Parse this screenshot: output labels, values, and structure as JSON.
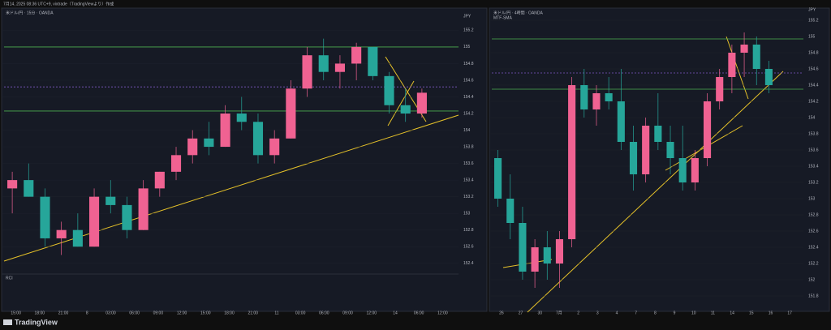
{
  "topbar": {
    "text": "7月14, 2025 08:36 UTC+9, vixtrade（TradingViewより）作成"
  },
  "footer": {
    "brand": "TradingView"
  },
  "panels": [
    {
      "legend": "米ドル/円 · 15分 · OANDA",
      "currency": "JPY",
      "indicator": "RCI",
      "ylim": [
        152.3,
        155.35
      ],
      "yticks": [
        152.4,
        152.6,
        152.8,
        153.0,
        153.2,
        153.4,
        153.6,
        153.8,
        154.0,
        154.2,
        154.4,
        154.6,
        154.8,
        155.0,
        155.2
      ],
      "xlabels": [
        "15:00",
        "18:00",
        "21:00",
        "8",
        "03:00",
        "06:00",
        "09:00",
        "12:00",
        "15:00",
        "18:00",
        "21:00",
        "11",
        "03:00",
        "06:00",
        "09:00",
        "12:00",
        "14",
        "06:00",
        "12:00"
      ],
      "levels": [
        {
          "value": 155.0,
          "color": "#4caf50"
        },
        {
          "value": 154.23,
          "color": "#4caf50"
        },
        {
          "value": 154.52,
          "color": "#7e57c2"
        }
      ],
      "candles": [
        [
          153.3,
          153.5,
          153.0,
          153.4
        ],
        [
          153.4,
          153.6,
          153.2,
          153.2
        ],
        [
          153.2,
          153.3,
          152.6,
          152.7
        ],
        [
          152.7,
          152.9,
          152.5,
          152.8
        ],
        [
          152.8,
          153.0,
          152.6,
          152.6
        ],
        [
          152.6,
          153.3,
          152.6,
          153.2
        ],
        [
          153.2,
          153.4,
          153.0,
          153.1
        ],
        [
          153.1,
          153.2,
          152.7,
          152.8
        ],
        [
          152.8,
          153.4,
          152.8,
          153.3
        ],
        [
          153.3,
          153.5,
          153.2,
          153.5
        ],
        [
          153.5,
          153.8,
          153.4,
          153.7
        ],
        [
          153.7,
          154.0,
          153.6,
          153.9
        ],
        [
          153.9,
          154.1,
          153.7,
          153.8
        ],
        [
          153.8,
          154.3,
          153.8,
          154.2
        ],
        [
          154.2,
          154.4,
          154.0,
          154.1
        ],
        [
          154.1,
          154.2,
          153.6,
          153.7
        ],
        [
          153.7,
          154.0,
          153.6,
          153.9
        ],
        [
          153.9,
          154.6,
          153.9,
          154.5
        ],
        [
          154.5,
          155.0,
          154.4,
          154.9
        ],
        [
          154.9,
          155.1,
          154.6,
          154.7
        ],
        [
          154.7,
          154.9,
          154.5,
          154.8
        ],
        [
          154.8,
          155.05,
          154.6,
          155.0
        ],
        [
          155.0,
          155.0,
          154.6,
          154.65
        ],
        [
          154.65,
          154.7,
          154.2,
          154.3
        ],
        [
          154.3,
          154.5,
          154.1,
          154.2
        ],
        [
          154.2,
          154.5,
          154.15,
          154.45
        ]
      ]
    },
    {
      "legend": "米ドル/円 · 4時間 · OANDA",
      "currency": "JPY",
      "indicator": "MTF-SMA",
      "ylim": [
        151.6,
        155.3
      ],
      "yticks": [
        151.8,
        152.0,
        152.2,
        152.4,
        152.6,
        152.8,
        153.0,
        153.2,
        153.4,
        153.6,
        153.8,
        154.0,
        154.2,
        154.4,
        154.6,
        154.8,
        155.0,
        155.2
      ],
      "xlabels": [
        "26",
        "27",
        "30",
        "7月",
        "2",
        "3",
        "4",
        "7",
        "8",
        "9",
        "10",
        "11",
        "14",
        "15",
        "16",
        "17"
      ],
      "levels": [
        {
          "value": 154.97,
          "color": "#4caf50"
        },
        {
          "value": 154.35,
          "color": "#4caf50"
        },
        {
          "value": 154.55,
          "color": "#7e57c2"
        }
      ],
      "candles": [
        [
          153.5,
          153.6,
          152.9,
          153.0
        ],
        [
          153.0,
          153.3,
          152.5,
          152.7
        ],
        [
          152.7,
          152.9,
          152.0,
          152.1
        ],
        [
          152.1,
          152.5,
          151.9,
          152.4
        ],
        [
          152.4,
          152.6,
          152.0,
          152.2
        ],
        [
          152.2,
          152.6,
          151.9,
          152.5
        ],
        [
          152.5,
          154.5,
          152.4,
          154.4
        ],
        [
          154.4,
          154.6,
          154.0,
          154.1
        ],
        [
          154.1,
          154.4,
          153.9,
          154.3
        ],
        [
          154.3,
          154.5,
          154.1,
          154.2
        ],
        [
          154.2,
          154.6,
          153.6,
          153.7
        ],
        [
          153.7,
          153.9,
          153.1,
          153.3
        ],
        [
          153.3,
          154.0,
          153.2,
          153.9
        ],
        [
          153.9,
          154.3,
          153.6,
          153.7
        ],
        [
          153.7,
          153.9,
          153.3,
          153.5
        ],
        [
          153.5,
          153.9,
          153.1,
          153.2
        ],
        [
          153.2,
          153.6,
          153.1,
          153.5
        ],
        [
          153.5,
          154.3,
          153.4,
          154.2
        ],
        [
          154.2,
          154.6,
          154.1,
          154.5
        ],
        [
          154.5,
          154.9,
          154.3,
          154.8
        ],
        [
          154.8,
          155.05,
          154.5,
          154.9
        ],
        [
          154.9,
          155.0,
          154.4,
          154.6
        ],
        [
          154.6,
          154.7,
          154.3,
          154.4
        ]
      ]
    }
  ]
}
